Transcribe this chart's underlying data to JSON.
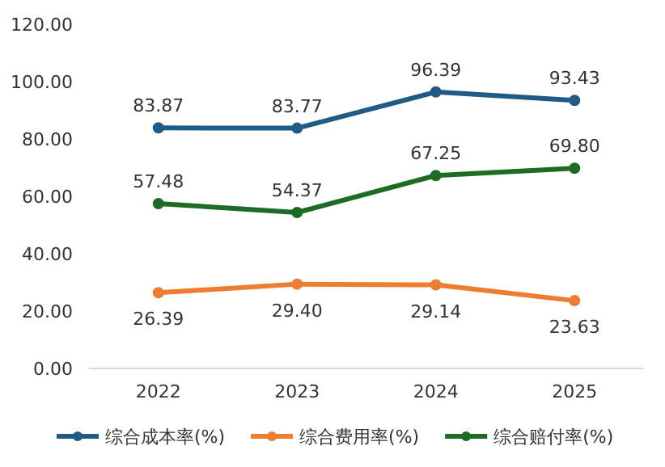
{
  "chart_data": {
    "type": "line",
    "categories": [
      "2022",
      "2023",
      "2024",
      "2025"
    ],
    "series": [
      {
        "name": "综合成本率(%)",
        "color": "#1f5b84",
        "values": [
          83.87,
          83.77,
          96.39,
          93.43
        ],
        "value_labels": [
          "83.87",
          "83.77",
          "96.39",
          "93.43"
        ]
      },
      {
        "name": "综合费用率(%)",
        "color": "#ed7d31",
        "values": [
          26.39,
          29.4,
          29.14,
          23.63
        ],
        "value_labels": [
          "26.39",
          "29.40",
          "29.14",
          "23.63"
        ]
      },
      {
        "name": "综合赔付率(%)",
        "color": "#1e6b25",
        "values": [
          57.48,
          54.37,
          67.25,
          69.8
        ],
        "value_labels": [
          "57.48",
          "54.37",
          "67.25",
          "69.80"
        ]
      }
    ],
    "ylim": [
      0,
      120
    ],
    "yticks": [
      {
        "value": 0,
        "label": "0.00"
      },
      {
        "value": 20,
        "label": "20.00"
      },
      {
        "value": 40,
        "label": "40.00"
      },
      {
        "value": 60,
        "label": "60.00"
      },
      {
        "value": 80,
        "label": "80.00"
      },
      {
        "value": 100,
        "label": "100.00"
      },
      {
        "value": 120,
        "label": "120.00"
      }
    ],
    "marker": "circle",
    "line_style": "solid",
    "legend": "bottom",
    "grid": false
  }
}
